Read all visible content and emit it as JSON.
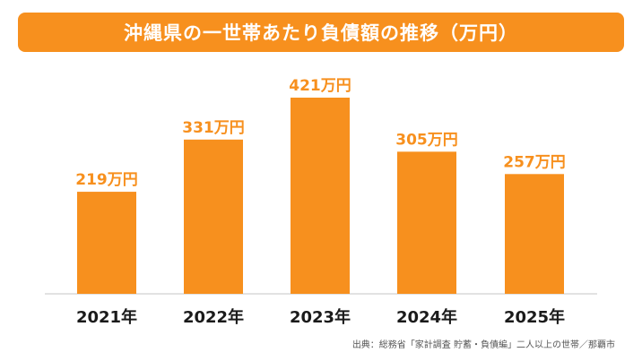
{
  "title": "沖縄県の一世帯あたり負債額の推移（万円）",
  "source": "出典：総務省「家計調査 貯蓄・負債編」二人以上の世帯／那覇市",
  "colors": {
    "bar": "#F7901E",
    "label": "#F7901E",
    "axis": "#d9d9d9",
    "category_text": "#1a1a1a",
    "banner": "#F7901E"
  },
  "chart_data": {
    "type": "bar",
    "title": "沖縄県の一世帯あたり負債額の推移（万円）",
    "categories": [
      "2021年",
      "2022年",
      "2023年",
      "2024年",
      "2025年"
    ],
    "values": [
      219,
      331,
      421,
      305,
      257
    ],
    "data_labels": [
      "219万円",
      "331万円",
      "421万円",
      "305万円",
      "257万円"
    ],
    "unit": "万円",
    "ylim": [
      0,
      421
    ],
    "grid": false,
    "legend": "none"
  }
}
